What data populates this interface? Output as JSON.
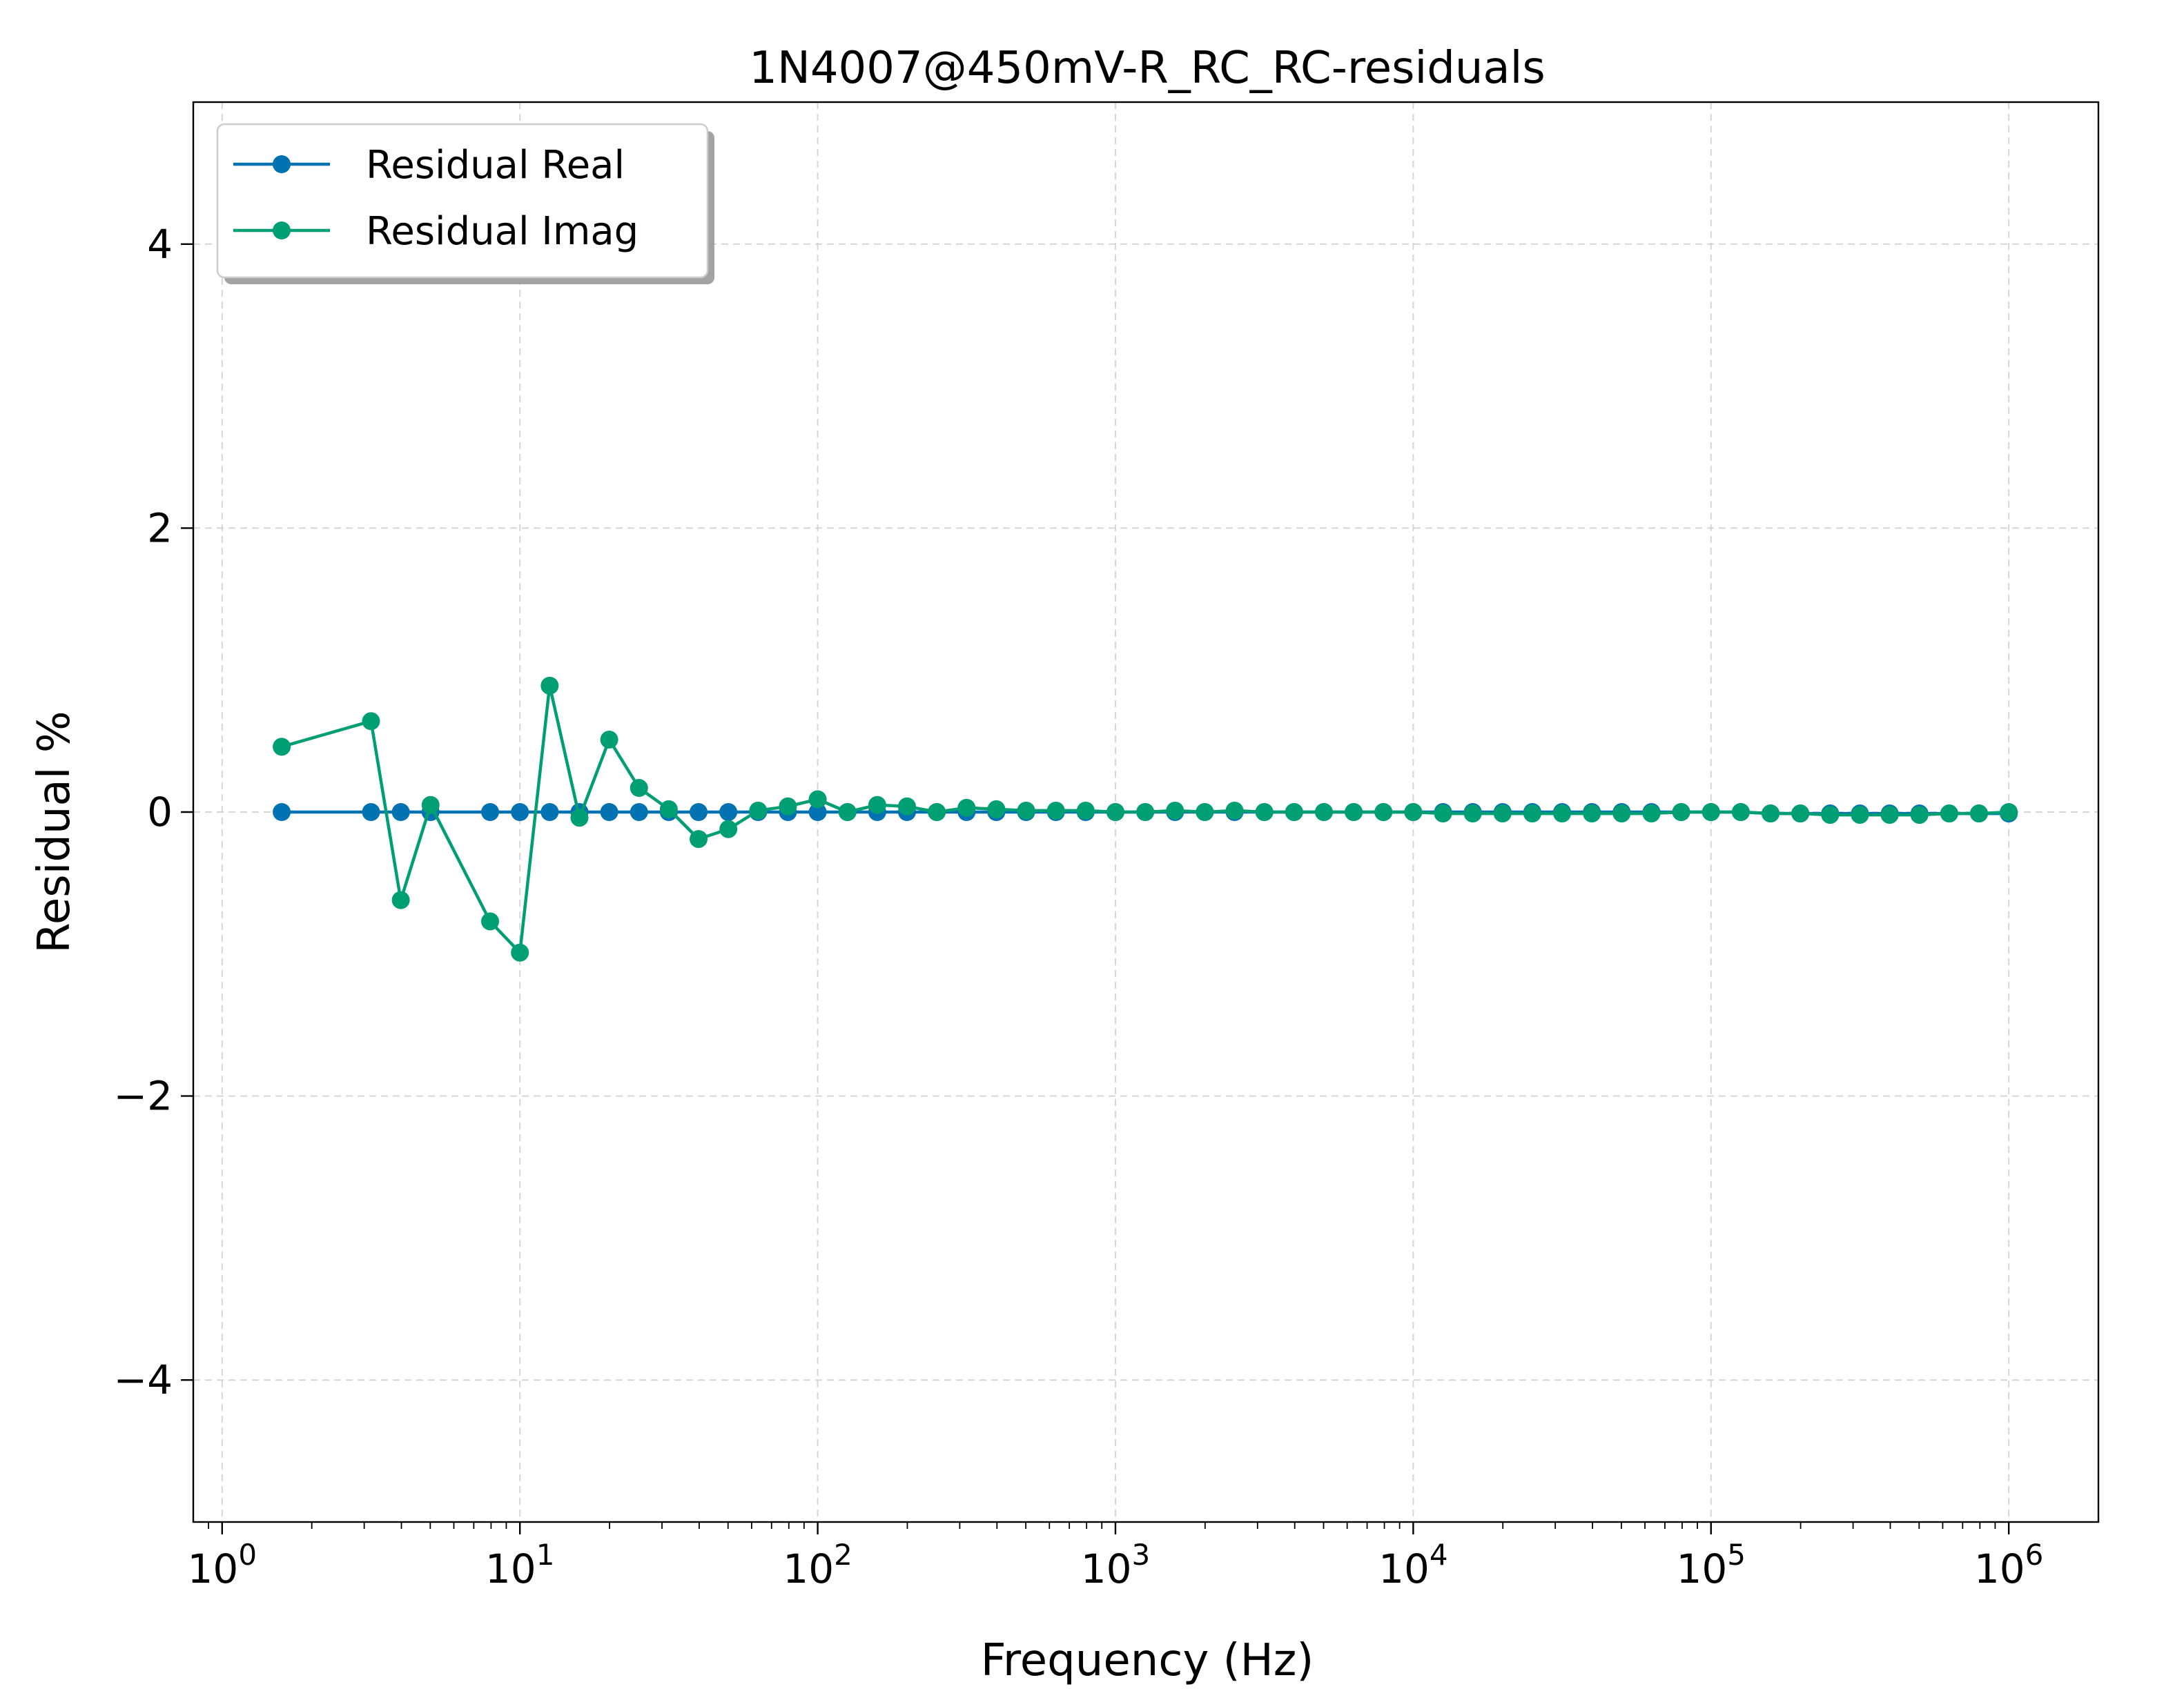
{
  "chart_data": {
    "type": "line",
    "title": "1N4007@450mV-R_RC_RC-residuals",
    "xlabel": "Frequency (Hz)",
    "ylabel": "Residual %",
    "xscale": "log",
    "xlim": [
      0.8,
      2000000
    ],
    "ylim": [
      -5,
      5
    ],
    "grid": true,
    "legend_position": "top-left",
    "x_ticks": [
      {
        "base": "10",
        "exp": "0",
        "value": 1
      },
      {
        "base": "10",
        "exp": "1",
        "value": 10
      },
      {
        "base": "10",
        "exp": "2",
        "value": 100
      },
      {
        "base": "10",
        "exp": "3",
        "value": 1000
      },
      {
        "base": "10",
        "exp": "4",
        "value": 10000
      },
      {
        "base": "10",
        "exp": "5",
        "value": 100000
      },
      {
        "base": "10",
        "exp": "6",
        "value": 1000000
      }
    ],
    "y_ticks": [
      {
        "label": "4",
        "value": 4
      },
      {
        "label": "2",
        "value": 2
      },
      {
        "label": "0",
        "value": 0
      },
      {
        "label": "−2",
        "value": -2
      },
      {
        "label": "−4",
        "value": -4
      }
    ],
    "x": [
      1.585,
      3.162,
      3.981,
      5.012,
      7.943,
      10.0,
      12.59,
      15.85,
      19.95,
      25.12,
      31.62,
      39.81,
      50.12,
      63.1,
      79.43,
      100.0,
      125.9,
      158.5,
      199.5,
      251.2,
      316.2,
      398.1,
      501.2,
      631.0,
      794.3,
      1000,
      1259,
      1585,
      1995,
      2512,
      3162,
      3981,
      5012,
      6310,
      7943,
      10000,
      12590,
      15850,
      19950,
      25120,
      31620,
      39810,
      50120,
      63100,
      79430,
      100000,
      125900,
      158500,
      199500,
      251200,
      316200,
      398100,
      501200,
      631000,
      794300,
      1000000
    ],
    "series": [
      {
        "name": "Residual Real",
        "color": "#0072b2",
        "values": [
          0.0,
          0.0,
          0.0,
          0.0,
          0.0,
          0.0,
          0.0,
          0.0,
          0.0,
          0.0,
          0.0,
          0.0,
          0.0,
          0.0,
          0.0,
          0.0,
          0.0,
          0.0,
          0.0,
          0.0,
          0.0,
          0.0,
          0.0,
          0.0,
          0.0,
          0.0,
          0.0,
          0.0,
          0.0,
          0.0,
          0.0,
          0.0,
          0.0,
          0.0,
          0.0,
          0.0,
          0.0,
          0.0,
          0.0,
          0.0,
          0.0,
          0.0,
          0.0,
          0.0,
          0.0,
          0.0,
          0.0,
          -0.01,
          -0.01,
          -0.01,
          -0.01,
          -0.01,
          -0.01,
          -0.01,
          -0.01,
          -0.01
        ]
      },
      {
        "name": "Residual Imag",
        "color": "#009e73",
        "values": [
          0.46,
          0.64,
          -0.62,
          0.05,
          -0.77,
          -0.99,
          0.89,
          -0.04,
          0.51,
          0.17,
          0.02,
          -0.19,
          -0.12,
          0.01,
          0.04,
          0.09,
          0.0,
          0.05,
          0.04,
          0.0,
          0.03,
          0.02,
          0.01,
          0.01,
          0.01,
          0.0,
          0.0,
          0.01,
          0.0,
          0.01,
          0.0,
          0.0,
          0.0,
          0.0,
          0.0,
          0.0,
          -0.01,
          -0.01,
          -0.01,
          -0.01,
          -0.01,
          -0.01,
          -0.01,
          -0.01,
          0.0,
          0.0,
          0.0,
          -0.01,
          -0.01,
          -0.02,
          -0.02,
          -0.02,
          -0.02,
          -0.01,
          -0.01,
          0.0
        ]
      }
    ]
  }
}
